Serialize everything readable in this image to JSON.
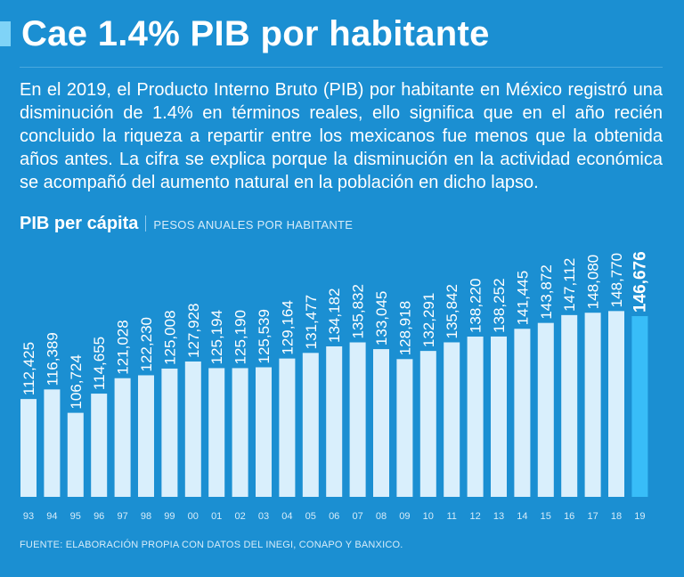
{
  "header": {
    "title": "Cae 1.4% PIB por habitante",
    "accent_color": "#7fd3f7"
  },
  "intro": {
    "text": "En el 2019, el Producto Interno Bruto (PIB) por habitante en México registró una disminución de 1.4% en términos reales, ello significa que en el año recién concluido la riqueza a repartir entre los mexicanos fue menos que la obtenida años antes. La cifra se explica porque la disminución en la actividad económica se acompañó del aumento natural en la población en dicho lapso."
  },
  "chart_header": {
    "title": "PIB per cápita",
    "subtitle": "PESOS ANUALES POR HABITANTE"
  },
  "chart_data": {
    "type": "bar",
    "title": "PIB per cápita",
    "ylabel": "PESOS ANUALES POR HABITANTE",
    "xlabel": "",
    "categories": [
      "93",
      "94",
      "95",
      "96",
      "97",
      "98",
      "99",
      "00",
      "01",
      "02",
      "03",
      "04",
      "05",
      "06",
      "07",
      "08",
      "09",
      "10",
      "11",
      "12",
      "13",
      "14",
      "15",
      "16",
      "17",
      "18",
      "19"
    ],
    "values": [
      112425,
      116389,
      106724,
      114655,
      121028,
      122230,
      125008,
      127928,
      125194,
      125190,
      125539,
      129164,
      131477,
      134182,
      135832,
      133045,
      128918,
      132291,
      135842,
      138220,
      138252,
      141445,
      143872,
      147112,
      148080,
      148770,
      146676
    ],
    "labels": [
      "112,425",
      "116,389",
      "106,724",
      "114,655",
      "121,028",
      "122,230",
      "125,008",
      "127,928",
      "125,194",
      "125,190",
      "125,539",
      "129,164",
      "131,477",
      "134,182",
      "135,832",
      "133,045",
      "128,918",
      "132,291",
      "135,842",
      "138,220",
      "138,252",
      "141,445",
      "143,872",
      "147,112",
      "148,080",
      "148,770",
      "146,676"
    ],
    "ylim": [
      72000,
      150000
    ],
    "highlight_index": 26,
    "bar_color": "#d9effc",
    "highlight_color": "#38bdf8",
    "grid": false
  },
  "footer": {
    "source": "FUENTE: ELABORACIÓN PROPIA CON DATOS DEL INEGI, CONAPO Y BANXICO."
  }
}
